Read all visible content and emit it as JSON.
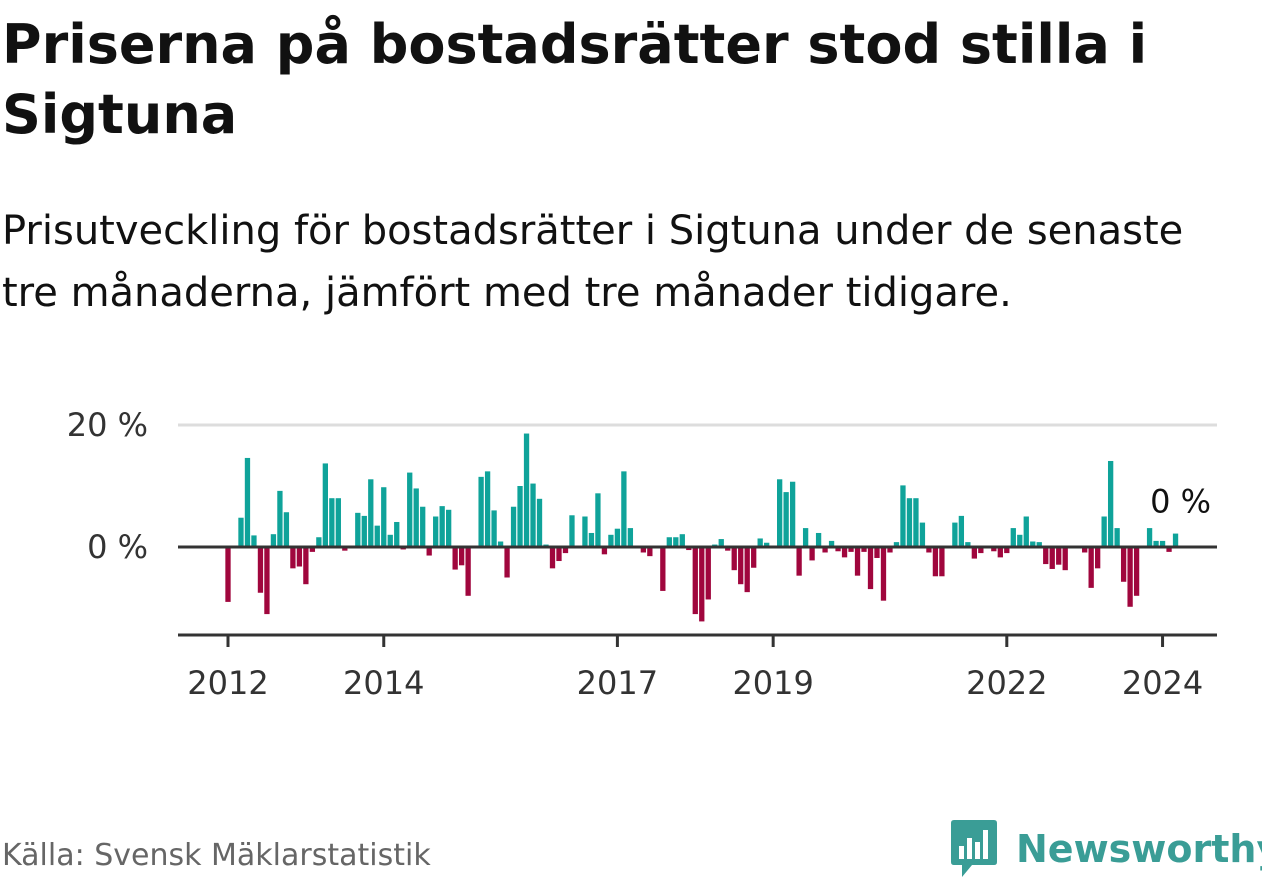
{
  "title": "Priserna på bostadsrätter stod stilla i Sigtuna",
  "subtitle": "Prisutveckling för bostadsrätter i Sigtuna under de senaste tre månaderna, jämfört med tre månader tidigare.",
  "source": "Källa: Svensk Mäklarstatistik",
  "brand": {
    "name": "Newsworthy",
    "color": "#3a9d96"
  },
  "colors": {
    "positive": "#0fa39a",
    "negative": "#a0063d",
    "zero_line": "#333333",
    "grid": "#dddddd",
    "axis": "#333333"
  },
  "chart_data": {
    "type": "bar",
    "title": "Priserna på bostadsrätter stod stilla i Sigtuna",
    "xlabel": "",
    "ylabel": "",
    "ylim": [
      -14,
      21
    ],
    "y_ticks": [
      {
        "value": 20,
        "label": "20 %"
      },
      {
        "value": 0,
        "label": "0 %"
      }
    ],
    "x_ticks": [
      {
        "year": 2012,
        "label": "2012"
      },
      {
        "year": 2014,
        "label": "2014"
      },
      {
        "year": 2017,
        "label": "2017"
      },
      {
        "year": 2019,
        "label": "2019"
      },
      {
        "year": 2022,
        "label": "2022"
      },
      {
        "year": 2024,
        "label": "2024"
      }
    ],
    "start": {
      "year": 2012,
      "month": 1
    },
    "end_label": "0 %",
    "unit": "%",
    "values": [
      -9.0,
      0.0,
      4.8,
      14.6,
      1.9,
      -7.5,
      -11.0,
      2.1,
      9.2,
      5.7,
      -3.5,
      -3.2,
      -6.1,
      -0.8,
      1.6,
      13.7,
      8.0,
      8.0,
      -0.6,
      0.0,
      5.6,
      5.1,
      11.1,
      3.5,
      9.8,
      2.0,
      4.1,
      -0.4,
      12.2,
      9.6,
      6.6,
      -1.4,
      5.0,
      6.7,
      6.1,
      -3.7,
      -3.0,
      -8.0,
      0.0,
      11.5,
      12.4,
      6.0,
      0.9,
      -5.0,
      6.6,
      10.0,
      18.6,
      10.4,
      7.9,
      0.4,
      -3.5,
      -2.3,
      -1.0,
      5.2,
      0.0,
      5.0,
      2.3,
      8.8,
      -1.2,
      2.0,
      3.0,
      12.4,
      3.1,
      0.0,
      -0.9,
      -1.5,
      0.0,
      -7.2,
      1.6,
      1.6,
      2.1,
      -0.5,
      -11.0,
      -12.2,
      -8.6,
      0.4,
      1.3,
      -0.6,
      -3.8,
      -6.1,
      -7.4,
      -3.4,
      1.4,
      0.7,
      0.0,
      11.1,
      9.0,
      10.7,
      -4.7,
      3.1,
      -2.2,
      2.3,
      -0.9,
      1.0,
      -0.7,
      -1.7,
      -0.8,
      -4.7,
      -0.8,
      -6.9,
      -1.8,
      -8.8,
      -0.9,
      0.8,
      10.1,
      8.0,
      8.0,
      4.0,
      -0.9,
      -4.8,
      -4.8,
      0.0,
      4.0,
      5.1,
      0.8,
      -1.9,
      -1.0,
      0.0,
      -0.7,
      -1.7,
      -1.0,
      3.1,
      2.0,
      5.0,
      0.9,
      0.8,
      -2.8,
      -3.6,
      -2.9,
      -3.8,
      0.0,
      0.0,
      -0.9,
      -6.7,
      -3.5,
      5.0,
      14.1,
      3.1,
      -5.7,
      -9.8,
      -8.0,
      0.0,
      3.1,
      1.0,
      1.0,
      -0.8,
      2.2
    ]
  }
}
